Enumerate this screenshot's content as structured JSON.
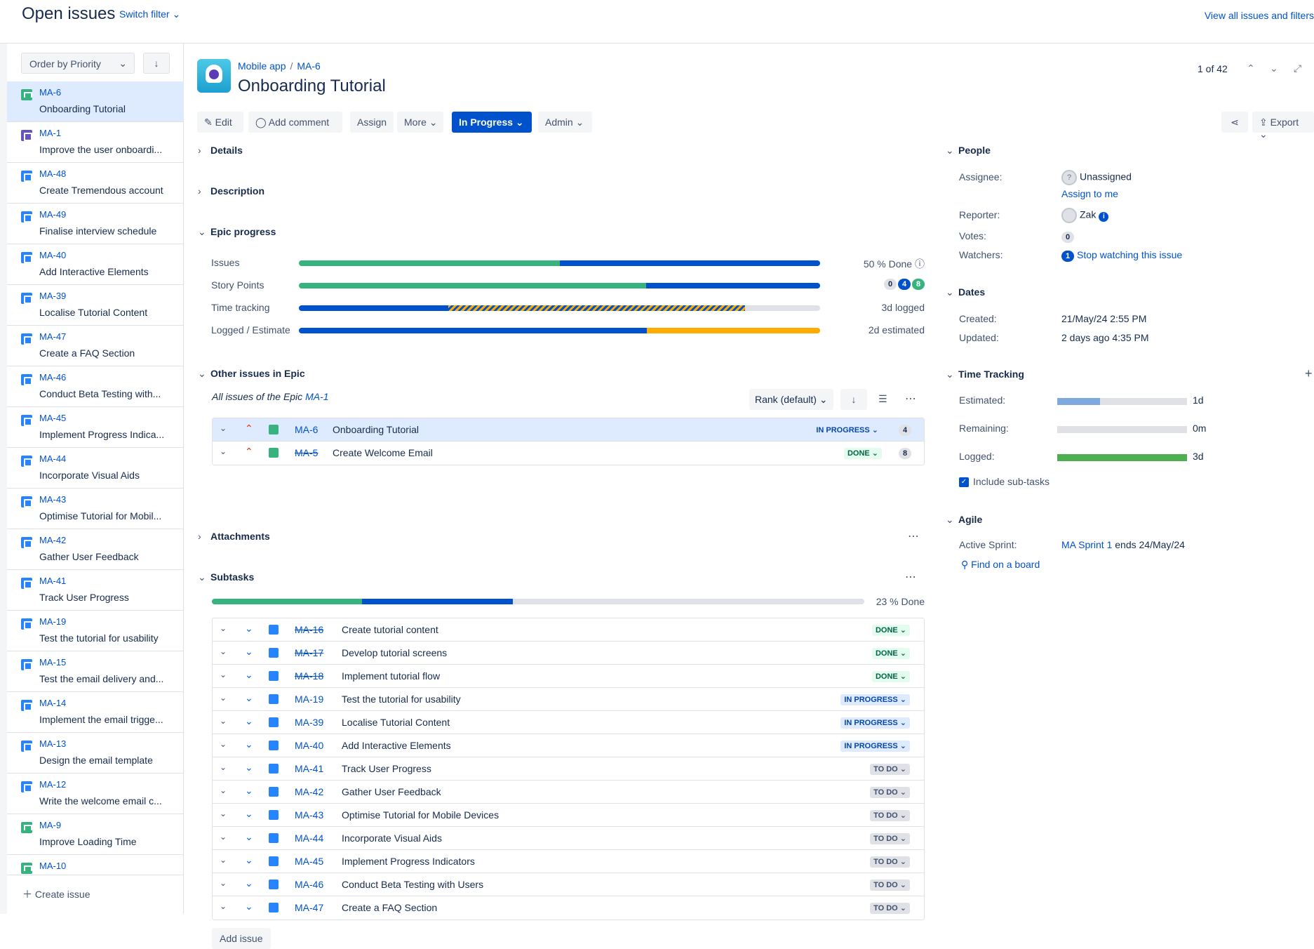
{
  "header": {
    "title": "Open issues",
    "switch_filter": "Switch filter",
    "view_all": "View all issues and filters"
  },
  "sidebar": {
    "order_label": "Order by Priority",
    "create_issue": "Create issue",
    "items": [
      {
        "key": "MA-6",
        "summary": "Onboarding Tutorial",
        "type": "story",
        "selected": true
      },
      {
        "key": "MA-1",
        "summary": "Improve the user onboardi...",
        "type": "epic"
      },
      {
        "key": "MA-48",
        "summary": "Create Tremendous account",
        "type": "subtask"
      },
      {
        "key": "MA-49",
        "summary": "Finalise interview schedule",
        "type": "subtask"
      },
      {
        "key": "MA-40",
        "summary": "Add Interactive Elements",
        "type": "subtask"
      },
      {
        "key": "MA-39",
        "summary": "Localise Tutorial Content",
        "type": "subtask"
      },
      {
        "key": "MA-47",
        "summary": "Create a FAQ Section",
        "type": "subtask"
      },
      {
        "key": "MA-46",
        "summary": "Conduct Beta Testing with...",
        "type": "subtask"
      },
      {
        "key": "MA-45",
        "summary": "Implement Progress Indica...",
        "type": "subtask"
      },
      {
        "key": "MA-44",
        "summary": "Incorporate Visual Aids",
        "type": "subtask"
      },
      {
        "key": "MA-43",
        "summary": "Optimise Tutorial for Mobil...",
        "type": "subtask"
      },
      {
        "key": "MA-42",
        "summary": "Gather User Feedback",
        "type": "subtask"
      },
      {
        "key": "MA-41",
        "summary": "Track User Progress",
        "type": "subtask"
      },
      {
        "key": "MA-19",
        "summary": "Test the tutorial for usability",
        "type": "subtask"
      },
      {
        "key": "MA-15",
        "summary": "Test the email delivery and...",
        "type": "subtask"
      },
      {
        "key": "MA-14",
        "summary": "Implement the email trigge...",
        "type": "subtask"
      },
      {
        "key": "MA-13",
        "summary": "Design the email template",
        "type": "subtask"
      },
      {
        "key": "MA-12",
        "summary": "Write the welcome email c...",
        "type": "subtask"
      },
      {
        "key": "MA-9",
        "summary": "Improve Loading Time",
        "type": "story"
      },
      {
        "key": "MA-10",
        "summary": "",
        "type": "story"
      }
    ]
  },
  "issue": {
    "project": "Mobile app",
    "key": "MA-6",
    "title": "Onboarding Tutorial",
    "pager": "1 of 42"
  },
  "toolbar": {
    "edit": "Edit",
    "comment": "Add comment",
    "assign": "Assign",
    "more": "More",
    "status": "In Progress",
    "admin": "Admin",
    "export": "Export"
  },
  "sections": {
    "details": "Details",
    "description": "Description",
    "epic_progress": "Epic progress",
    "other_issues": "Other issues in Epic",
    "attachments": "Attachments",
    "subtasks": "Subtasks"
  },
  "epic_progress": {
    "issues_label": "Issues",
    "issues_value": "50 % Done",
    "story_points_label": "Story Points",
    "sp_todo": "0",
    "sp_prog": "4",
    "sp_done": "8",
    "time_label": "Time tracking",
    "time_value": "3d logged",
    "logged_label": "Logged / Estimate",
    "logged_value": "2d estimated"
  },
  "epic_note": {
    "prefix": "All issues of the Epic ",
    "link": "MA-1"
  },
  "rank_label": "Rank (default)",
  "epic_issues": [
    {
      "key": "MA-6",
      "summary": "Onboarding Tutorial",
      "status": "IN PROGRESS",
      "points": "4",
      "done": false
    },
    {
      "key": "MA-5",
      "summary": "Create Welcome Email",
      "status": "DONE",
      "points": "8",
      "done": true
    }
  ],
  "subtasks_progress": "23 % Done",
  "subtasks": [
    {
      "key": "MA-16",
      "summary": "Create tutorial content",
      "status": "DONE"
    },
    {
      "key": "MA-17",
      "summary": "Develop tutorial screens",
      "status": "DONE"
    },
    {
      "key": "MA-18",
      "summary": "Implement tutorial flow",
      "status": "DONE"
    },
    {
      "key": "MA-19",
      "summary": "Test the tutorial for usability",
      "status": "IN PROGRESS"
    },
    {
      "key": "MA-39",
      "summary": "Localise Tutorial Content",
      "status": "IN PROGRESS"
    },
    {
      "key": "MA-40",
      "summary": "Add Interactive Elements",
      "status": "IN PROGRESS"
    },
    {
      "key": "MA-41",
      "summary": "Track User Progress",
      "status": "TO DO"
    },
    {
      "key": "MA-42",
      "summary": "Gather User Feedback",
      "status": "TO DO"
    },
    {
      "key": "MA-43",
      "summary": "Optimise Tutorial for Mobile Devices",
      "status": "TO DO"
    },
    {
      "key": "MA-44",
      "summary": "Incorporate Visual Aids",
      "status": "TO DO"
    },
    {
      "key": "MA-45",
      "summary": "Implement Progress Indicators",
      "status": "TO DO"
    },
    {
      "key": "MA-46",
      "summary": "Conduct Beta Testing with Users",
      "status": "TO DO"
    },
    {
      "key": "MA-47",
      "summary": "Create a FAQ Section",
      "status": "TO DO"
    }
  ],
  "add_issue": "Add issue",
  "people": {
    "title": "People",
    "assignee_label": "Assignee:",
    "assignee": "Unassigned",
    "assign_to_me": "Assign to me",
    "reporter_label": "Reporter:",
    "reporter": "Zak",
    "votes_label": "Votes:",
    "votes": "0",
    "watchers_label": "Watchers:",
    "watchers": "1",
    "stop_watching": "Stop watching this issue"
  },
  "dates": {
    "title": "Dates",
    "created_label": "Created:",
    "created": "21/May/24 2:55 PM",
    "updated_label": "Updated:",
    "updated": "2 days ago 4:35 PM"
  },
  "time_tracking": {
    "title": "Time Tracking",
    "estimated_label": "Estimated:",
    "estimated": "1d",
    "remaining_label": "Remaining:",
    "remaining": "0m",
    "logged_label": "Logged:",
    "logged": "3d",
    "include_subtasks": "Include sub-tasks"
  },
  "agile": {
    "title": "Agile",
    "sprint_label": "Active Sprint:",
    "sprint": "MA Sprint 1",
    "sprint_ends": " ends 24/May/24",
    "find_board": "Find on a board"
  },
  "colors": {
    "accent": "#0052cc",
    "done": "#36b37e",
    "todo": "#dfe1e6",
    "warn": "#ffab00",
    "logged": "#4caf50"
  }
}
